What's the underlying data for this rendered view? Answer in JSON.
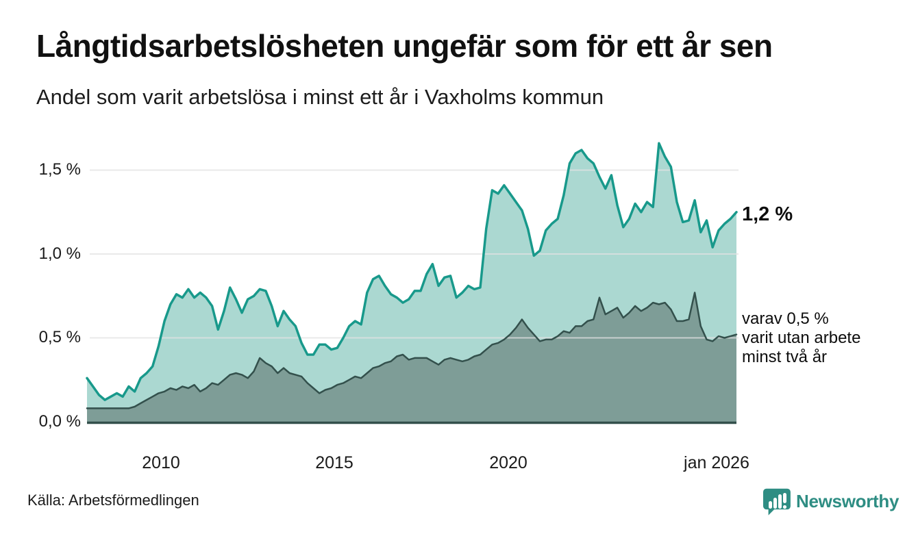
{
  "header": {
    "title": "Långtidsarbetslösheten ungefär som för ett år sen",
    "subtitle": "Andel som varit arbetslösa i minst ett år i Vaxholms kommun"
  },
  "chart_data": {
    "type": "area",
    "title": "Långtidsarbetslösheten ungefär som för ett år sen",
    "subtitle": "Andel som varit arbetslösa i minst ett år i Vaxholms kommun",
    "unit": "%",
    "frequency": "every 2 months",
    "x_range": {
      "start": "jan 2008",
      "end": "jan 2026"
    },
    "ylim": [
      0,
      1.72
    ],
    "grid": true,
    "grid_color": "#e2e2e2",
    "axis_color": "#33504c",
    "y_ticks": [
      {
        "label": "0,0 %",
        "value": 0
      },
      {
        "label": "0,5 %",
        "value": 0.5
      },
      {
        "label": "1,0 %",
        "value": 1.0
      },
      {
        "label": "1,5 %",
        "value": 1.5
      }
    ],
    "x_ticks": [
      {
        "label": "2010",
        "pos": 0.114
      },
      {
        "label": "2015",
        "pos": 0.38
      },
      {
        "label": "2020",
        "pos": 0.647
      },
      {
        "label": "jan 2026",
        "pos": 0.968
      }
    ],
    "series": [
      {
        "name": "Andel arbetslösa minst ett år",
        "stroke": "#18998b",
        "fill": "#abd8d1",
        "stroke_width": 3.5,
        "end_value_label": "1,2 %",
        "values": [
          0.26,
          0.21,
          0.16,
          0.13,
          0.15,
          0.17,
          0.15,
          0.21,
          0.18,
          0.26,
          0.29,
          0.33,
          0.45,
          0.6,
          0.7,
          0.76,
          0.74,
          0.79,
          0.74,
          0.77,
          0.74,
          0.69,
          0.55,
          0.66,
          0.8,
          0.73,
          0.65,
          0.73,
          0.75,
          0.79,
          0.78,
          0.69,
          0.57,
          0.66,
          0.61,
          0.57,
          0.47,
          0.4,
          0.4,
          0.46,
          0.46,
          0.43,
          0.44,
          0.5,
          0.57,
          0.6,
          0.58,
          0.77,
          0.85,
          0.87,
          0.81,
          0.76,
          0.74,
          0.71,
          0.73,
          0.78,
          0.78,
          0.88,
          0.94,
          0.81,
          0.86,
          0.87,
          0.74,
          0.77,
          0.81,
          0.79,
          0.8,
          1.15,
          1.38,
          1.36,
          1.41,
          1.36,
          1.31,
          1.26,
          1.15,
          0.99,
          1.02,
          1.14,
          1.18,
          1.21,
          1.35,
          1.54,
          1.6,
          1.62,
          1.57,
          1.54,
          1.46,
          1.39,
          1.47,
          1.29,
          1.16,
          1.21,
          1.3,
          1.25,
          1.31,
          1.28,
          1.66,
          1.58,
          1.52,
          1.31,
          1.19,
          1.2,
          1.32,
          1.13,
          1.2,
          1.04,
          1.14,
          1.18,
          1.21,
          1.25
        ]
      },
      {
        "name": "varav utan arbete minst två år",
        "stroke": "#33504c",
        "fill": "#7e9d97",
        "stroke_width": 2.5,
        "end_value_label": "0,5 %",
        "values": [
          0.08,
          0.08,
          0.08,
          0.08,
          0.08,
          0.08,
          0.08,
          0.08,
          0.09,
          0.11,
          0.13,
          0.15,
          0.17,
          0.18,
          0.2,
          0.19,
          0.21,
          0.2,
          0.22,
          0.18,
          0.2,
          0.23,
          0.22,
          0.25,
          0.28,
          0.29,
          0.28,
          0.26,
          0.3,
          0.38,
          0.35,
          0.33,
          0.29,
          0.32,
          0.29,
          0.28,
          0.27,
          0.23,
          0.2,
          0.17,
          0.19,
          0.2,
          0.22,
          0.23,
          0.25,
          0.27,
          0.26,
          0.29,
          0.32,
          0.33,
          0.35,
          0.36,
          0.39,
          0.4,
          0.37,
          0.38,
          0.38,
          0.38,
          0.36,
          0.34,
          0.37,
          0.38,
          0.37,
          0.36,
          0.37,
          0.39,
          0.4,
          0.43,
          0.46,
          0.47,
          0.49,
          0.52,
          0.56,
          0.61,
          0.56,
          0.52,
          0.48,
          0.49,
          0.49,
          0.51,
          0.54,
          0.53,
          0.57,
          0.57,
          0.6,
          0.61,
          0.74,
          0.64,
          0.66,
          0.68,
          0.62,
          0.65,
          0.69,
          0.66,
          0.68,
          0.71,
          0.7,
          0.71,
          0.67,
          0.6,
          0.6,
          0.61,
          0.77,
          0.57,
          0.49,
          0.48,
          0.51,
          0.5,
          0.51,
          0.52
        ]
      }
    ],
    "annotations": {
      "main": "1,2 %",
      "secondary_lines": [
        "varav 0,5 %",
        "varit utan arbete",
        "minst två år"
      ]
    },
    "legend_position": "right-edge-labels"
  },
  "footer": {
    "source": "Källa: Arbetsförmedlingen",
    "logo_text": "Newsworthy",
    "logo_color": "#2e8d83"
  }
}
